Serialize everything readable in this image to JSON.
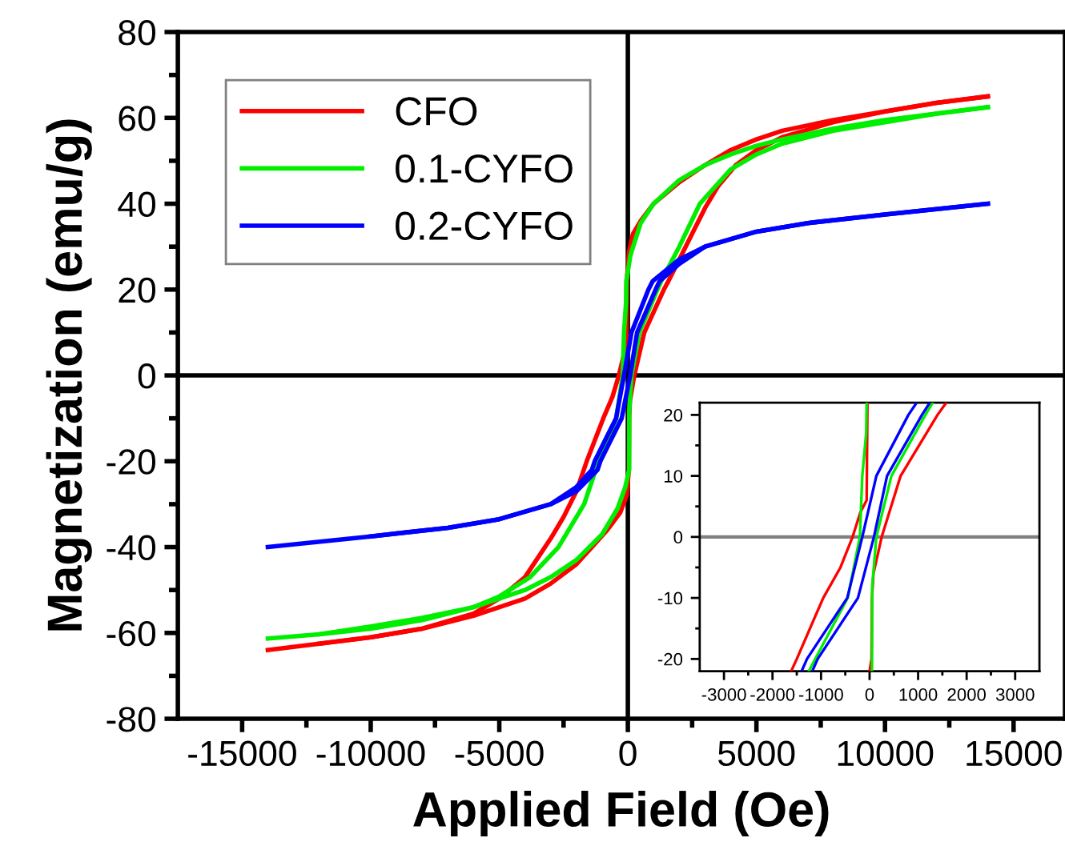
{
  "chart_data": [
    {
      "type": "line",
      "xlabel": "Applied Field (Oe)",
      "ylabel": "Magnetization (emu/g)",
      "xlim": [
        -17500,
        17000
      ],
      "ylim": [
        -80,
        80
      ],
      "xticks": [
        -15000,
        {
          "value": -12500,
          "label": null
        },
        -10000,
        {
          "value": -7500,
          "label": null
        },
        -5000,
        {
          "value": -2500,
          "label": null
        },
        0,
        {
          "value": 2500,
          "label": null
        },
        5000,
        {
          "value": 7500,
          "label": null
        },
        10000,
        {
          "value": 12500,
          "label": null
        },
        15000
      ],
      "yticks": [
        -80,
        {
          "value": -70,
          "label": null
        },
        -60,
        {
          "value": -50,
          "label": null
        },
        -40,
        {
          "value": -30,
          "label": null
        },
        -20,
        {
          "value": -10,
          "label": null
        },
        0,
        {
          "value": 10,
          "label": null
        },
        20,
        {
          "value": 30,
          "label": null
        },
        40,
        {
          "value": 50,
          "label": null
        },
        60,
        {
          "value": 70,
          "label": null
        },
        80
      ],
      "ref_lines": [
        {
          "axis": "x",
          "value": 0,
          "color": "#000000"
        },
        {
          "axis": "y",
          "value": 0,
          "color": "#000000"
        }
      ],
      "legend": "top left",
      "grid": false,
      "series": [
        {
          "name": "CFO",
          "color": "#ff0000",
          "x": [
            14000,
            12000,
            10000,
            8000,
            6000,
            5000,
            4000,
            3000,
            2000,
            1000,
            500,
            200,
            50,
            -44,
            -60,
            -190,
            -350,
            -600,
            -955,
            -1600,
            -2000,
            -2500,
            -3000,
            -4000,
            -5000,
            -6000,
            -8000,
            -10000,
            -12000,
            -14000
          ],
          "values": [
            65,
            63.5,
            61.5,
            59.5,
            57,
            55,
            52.5,
            49,
            45,
            40,
            36,
            33,
            29,
            22,
            6,
            4,
            0,
            -5,
            -10,
            -20,
            -27,
            -33,
            -38,
            -47,
            -52,
            -55.5,
            -59,
            -61,
            -62.5,
            -64
          ]
        },
        {
          "color": "#ff0000",
          "x": [
            -12000,
            -10000,
            -8000,
            -6000,
            -5000,
            -4000,
            -3000,
            -2000,
            -1400,
            -800,
            -300,
            -50,
            40,
            50,
            80,
            250,
            640,
            1400,
            1580,
            2000,
            2500,
            3000,
            3500,
            4200,
            5000,
            6000,
            8000,
            10000,
            12000,
            14000
          ],
          "values": [
            -62.5,
            -61,
            -59,
            -56,
            -54,
            -52,
            -48.5,
            -44,
            -40,
            -36,
            -32,
            -28,
            -22,
            -10,
            -6,
            0,
            10,
            20,
            22,
            27,
            33,
            39,
            44,
            49,
            52.5,
            55.5,
            59,
            61.5,
            63.5,
            65
          ]
        },
        {
          "name": "0.1-CYFO",
          "color": "#00ee00",
          "x": [
            14000,
            12000,
            10000,
            8000,
            6000,
            5000,
            4000,
            3000,
            2000,
            1000,
            500,
            100,
            -60,
            -70,
            -150,
            -200,
            -450,
            -1120,
            -1250,
            -1700,
            -2700,
            -3800,
            -5000,
            -6000,
            -8000,
            -10000,
            -12000,
            -14000
          ],
          "values": [
            62.5,
            61,
            59.5,
            57.5,
            55,
            53.5,
            51.5,
            49,
            45.5,
            40,
            35.5,
            28,
            22,
            17,
            10,
            0,
            -10,
            -20,
            -22,
            -30,
            -40,
            -47,
            -51.5,
            -54,
            -57,
            -59,
            -60.3,
            -61.3
          ]
        },
        {
          "color": "#00ee00",
          "x": [
            -12000,
            -10000,
            -8000,
            -6000,
            -5000,
            -4000,
            -3000,
            -2000,
            -1000,
            -400,
            -100,
            50,
            55,
            140,
            450,
            1150,
            1300,
            2000,
            2800,
            4000,
            5000,
            6000,
            8000,
            10000,
            12000,
            14000
          ],
          "values": [
            -60.3,
            -58.5,
            -56.5,
            -54,
            -52,
            -50,
            -47,
            -43,
            -37,
            -31,
            -26,
            -22,
            -8,
            0,
            10,
            20,
            22,
            30,
            40,
            48,
            51.5,
            54,
            57,
            59,
            61,
            62.5
          ]
        },
        {
          "name": "0.2-CYFO",
          "color": "#0000ff",
          "x": [
            14000,
            10000,
            7000,
            5000,
            3000,
            2000,
            970,
            800,
            140,
            -150,
            -460,
            -1290,
            -1400,
            -2000,
            -3000,
            -5000,
            -7000,
            -10000,
            -14000
          ],
          "values": [
            40,
            37.5,
            35.5,
            33.5,
            30,
            27,
            22,
            20,
            10,
            0,
            -10,
            -20,
            -22,
            -26,
            -30,
            -33.5,
            -35.5,
            -37.5,
            -40
          ]
        },
        {
          "color": "#0000ff",
          "x": [
            -10000,
            -7000,
            -5000,
            -3000,
            -2000,
            -1180,
            -1070,
            -240,
            90,
            360,
            1080,
            1240,
            2000,
            3000,
            5000,
            7000,
            10000,
            14000
          ],
          "values": [
            -37.5,
            -35.5,
            -33.5,
            -30,
            -27,
            -22,
            -20,
            -10,
            0,
            10,
            20,
            22,
            26,
            30,
            33.5,
            35.5,
            37.5,
            40
          ]
        }
      ]
    },
    {
      "type": "line",
      "xlim": [
        -3500,
        3500
      ],
      "ylim": [
        -22,
        22
      ],
      "xticks": [
        -3000,
        {
          "value": -2500,
          "label": null
        },
        -2000,
        {
          "value": -1500,
          "label": null
        },
        -1000,
        {
          "value": -500,
          "label": null
        },
        0,
        {
          "value": 500,
          "label": null
        },
        1000,
        {
          "value": 1500,
          "label": null
        },
        2000,
        {
          "value": 2500,
          "label": null
        },
        3000
      ],
      "yticks": [
        -20,
        {
          "value": -15,
          "label": null
        },
        -10,
        {
          "value": -5,
          "label": null
        },
        0,
        {
          "value": 5,
          "label": null
        },
        10,
        {
          "value": 15,
          "label": null
        },
        20
      ],
      "ref_lines": [
        {
          "axis": "y",
          "value": 0,
          "color": "#808080"
        }
      ],
      "legend": false,
      "grid": false,
      "series": [
        {
          "color": "#ff0000",
          "x": [
            -44,
            -60,
            -190,
            -350,
            -600,
            -955,
            -1500,
            -1615
          ],
          "values": [
            22,
            6,
            4,
            0,
            -5,
            -10,
            -20,
            -22
          ]
        },
        {
          "color": "#ff0000",
          "x": [
            0,
            40,
            50,
            80,
            250,
            640,
            1400,
            1580
          ],
          "values": [
            -22,
            -20,
            -10,
            -6,
            0,
            10,
            20,
            22
          ]
        },
        {
          "color": "#00ee00",
          "x": [
            -60,
            -70,
            -150,
            -200,
            -450,
            -1120,
            -1250
          ],
          "values": [
            22,
            17,
            10,
            0,
            -10,
            -20,
            -22
          ]
        },
        {
          "color": "#00ee00",
          "x": [
            50,
            55,
            140,
            450,
            1150,
            1300
          ],
          "values": [
            -22,
            -8,
            0,
            10,
            20,
            22
          ]
        },
        {
          "color": "#0000ff",
          "x": [
            970,
            800,
            140,
            -150,
            -460,
            -1290,
            -1400
          ],
          "values": [
            22,
            20,
            10,
            0,
            -10,
            -20,
            -22
          ]
        },
        {
          "color": "#0000ff",
          "x": [
            -1180,
            -1070,
            -240,
            90,
            360,
            1080,
            1240
          ],
          "values": [
            -22,
            -20,
            -10,
            0,
            10,
            20,
            22
          ]
        }
      ]
    }
  ]
}
